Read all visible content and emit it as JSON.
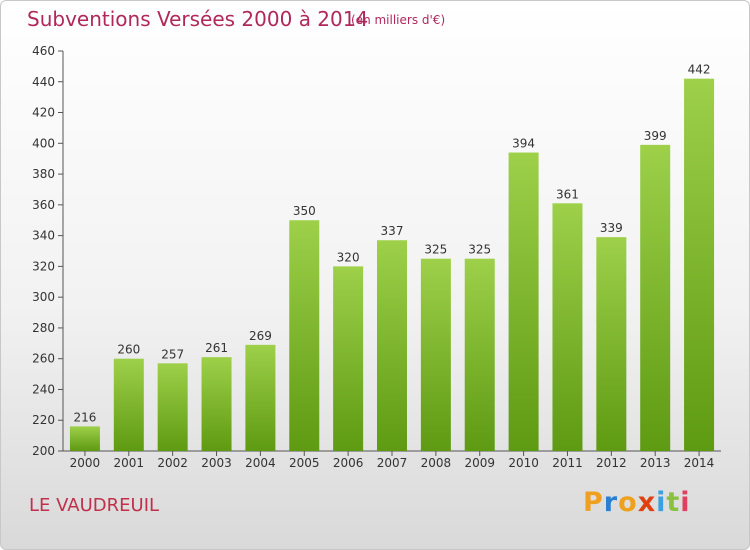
{
  "title": "Subventions Versées 2000 à 2014",
  "subtitle": "(en milliers d'€)",
  "commune": "LE VAUDREUIL",
  "logo": {
    "letters": [
      {
        "ch": "P",
        "color": "#f0a020"
      },
      {
        "ch": "r",
        "color": "#2a7fd0"
      },
      {
        "ch": "o",
        "color": "#f0a020"
      },
      {
        "ch": "x",
        "color": "#e04010"
      },
      {
        "ch": "i",
        "color": "#3aa0e0"
      },
      {
        "ch": "t",
        "color": "#8cc040"
      },
      {
        "ch": "i",
        "color": "#e04060"
      }
    ]
  },
  "chart_data": {
    "type": "bar",
    "categories": [
      "2000",
      "2001",
      "2002",
      "2003",
      "2004",
      "2005",
      "2006",
      "2007",
      "2008",
      "2009",
      "2010",
      "2011",
      "2012",
      "2013",
      "2014"
    ],
    "values": [
      216,
      260,
      257,
      261,
      269,
      350,
      320,
      337,
      325,
      325,
      394,
      361,
      339,
      399,
      442
    ],
    "ylim": [
      200,
      460
    ],
    "yticks": [
      200,
      220,
      240,
      260,
      280,
      300,
      320,
      340,
      360,
      380,
      400,
      420,
      440,
      460
    ],
    "grid": false,
    "bar_color_top": "#9ed04a",
    "bar_color_bottom": "#5e9a12"
  }
}
